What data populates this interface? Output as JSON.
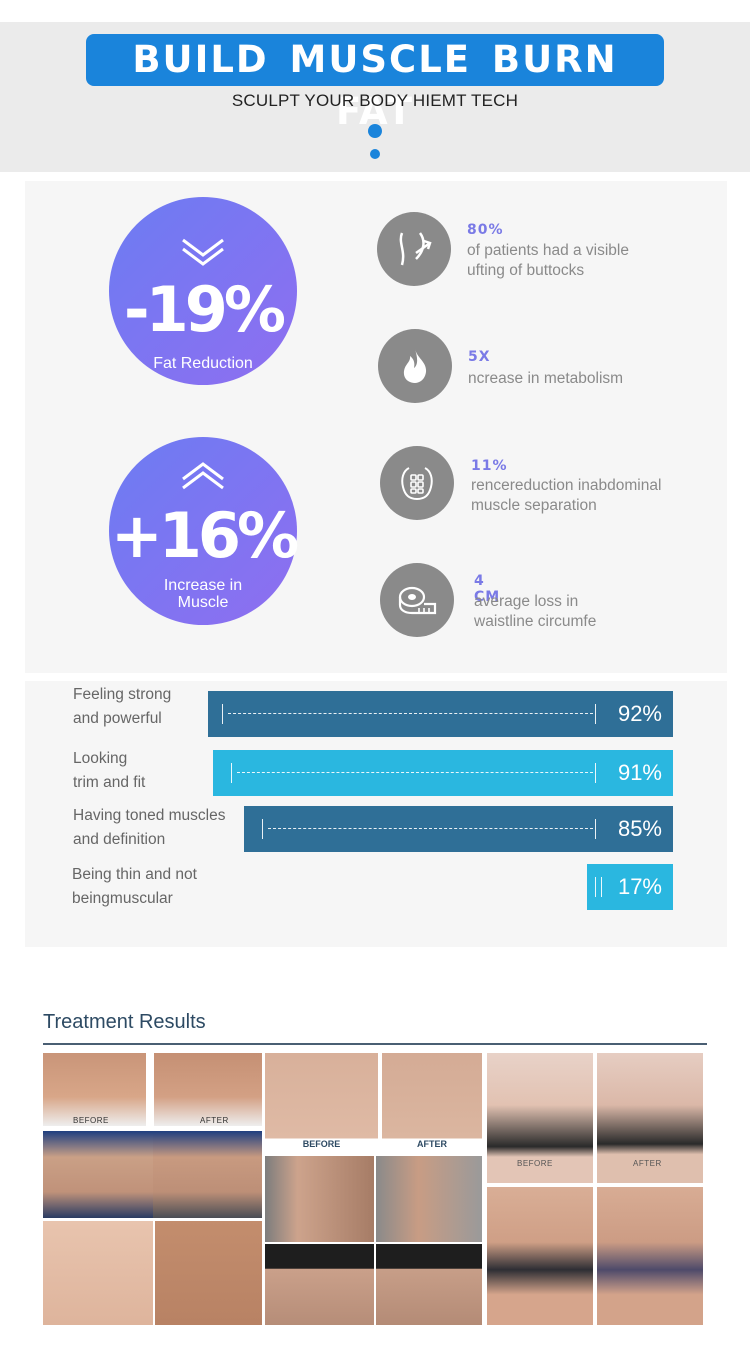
{
  "header": {
    "title": "BUILD MUSCLE BURN FAT",
    "subtitle": "SCULPT YOUR BODY HIEMT TECH"
  },
  "highlights": [
    {
      "value": "-19%",
      "label": "Fat Reduction",
      "direction": "down"
    },
    {
      "value": "+16%",
      "label": "Increase in Muscle",
      "direction": "up"
    }
  ],
  "stats": [
    {
      "value": "80%",
      "line1": "of patients had a visible",
      "line2": "ufting of buttocks",
      "icon": "buttocks-lift-icon"
    },
    {
      "value": "5X",
      "line1": "ncrease in metabolism",
      "line2": "",
      "icon": "flame-icon"
    },
    {
      "value": "11%",
      "line1": "rencereduction inabdominal",
      "line2": "muscle  separation",
      "icon": "abdomen-icon"
    },
    {
      "value": "4 CM",
      "line1": "average loss in",
      "line2": "waistline circumfe",
      "icon": "tape-measure-icon"
    }
  ],
  "survey": [
    {
      "line1": "Feeling strong",
      "line2": "and powerful",
      "value": "92%",
      "percent": 92,
      "color": "#2f6f97"
    },
    {
      "line1": "Looking",
      "line2": "trim and fit",
      "value": "91%",
      "percent": 91,
      "color": "#2ab7e0"
    },
    {
      "line1": "Having toned muscles",
      "line2": "and definition",
      "value": "85%",
      "percent": 85,
      "color": "#2f6f97"
    },
    {
      "line1": "Being thin and not",
      "line2": "beingmuscular",
      "value": "17%",
      "percent": 17,
      "color": "#2ab7e0"
    }
  ],
  "results": {
    "title": "Treatment Results",
    "captions": {
      "before": "BEFORE",
      "after": "AFTER"
    }
  },
  "colors": {
    "accent": "#1a84db",
    "circle": "#7b76f2",
    "icon_bg": "#8a8a8a"
  }
}
